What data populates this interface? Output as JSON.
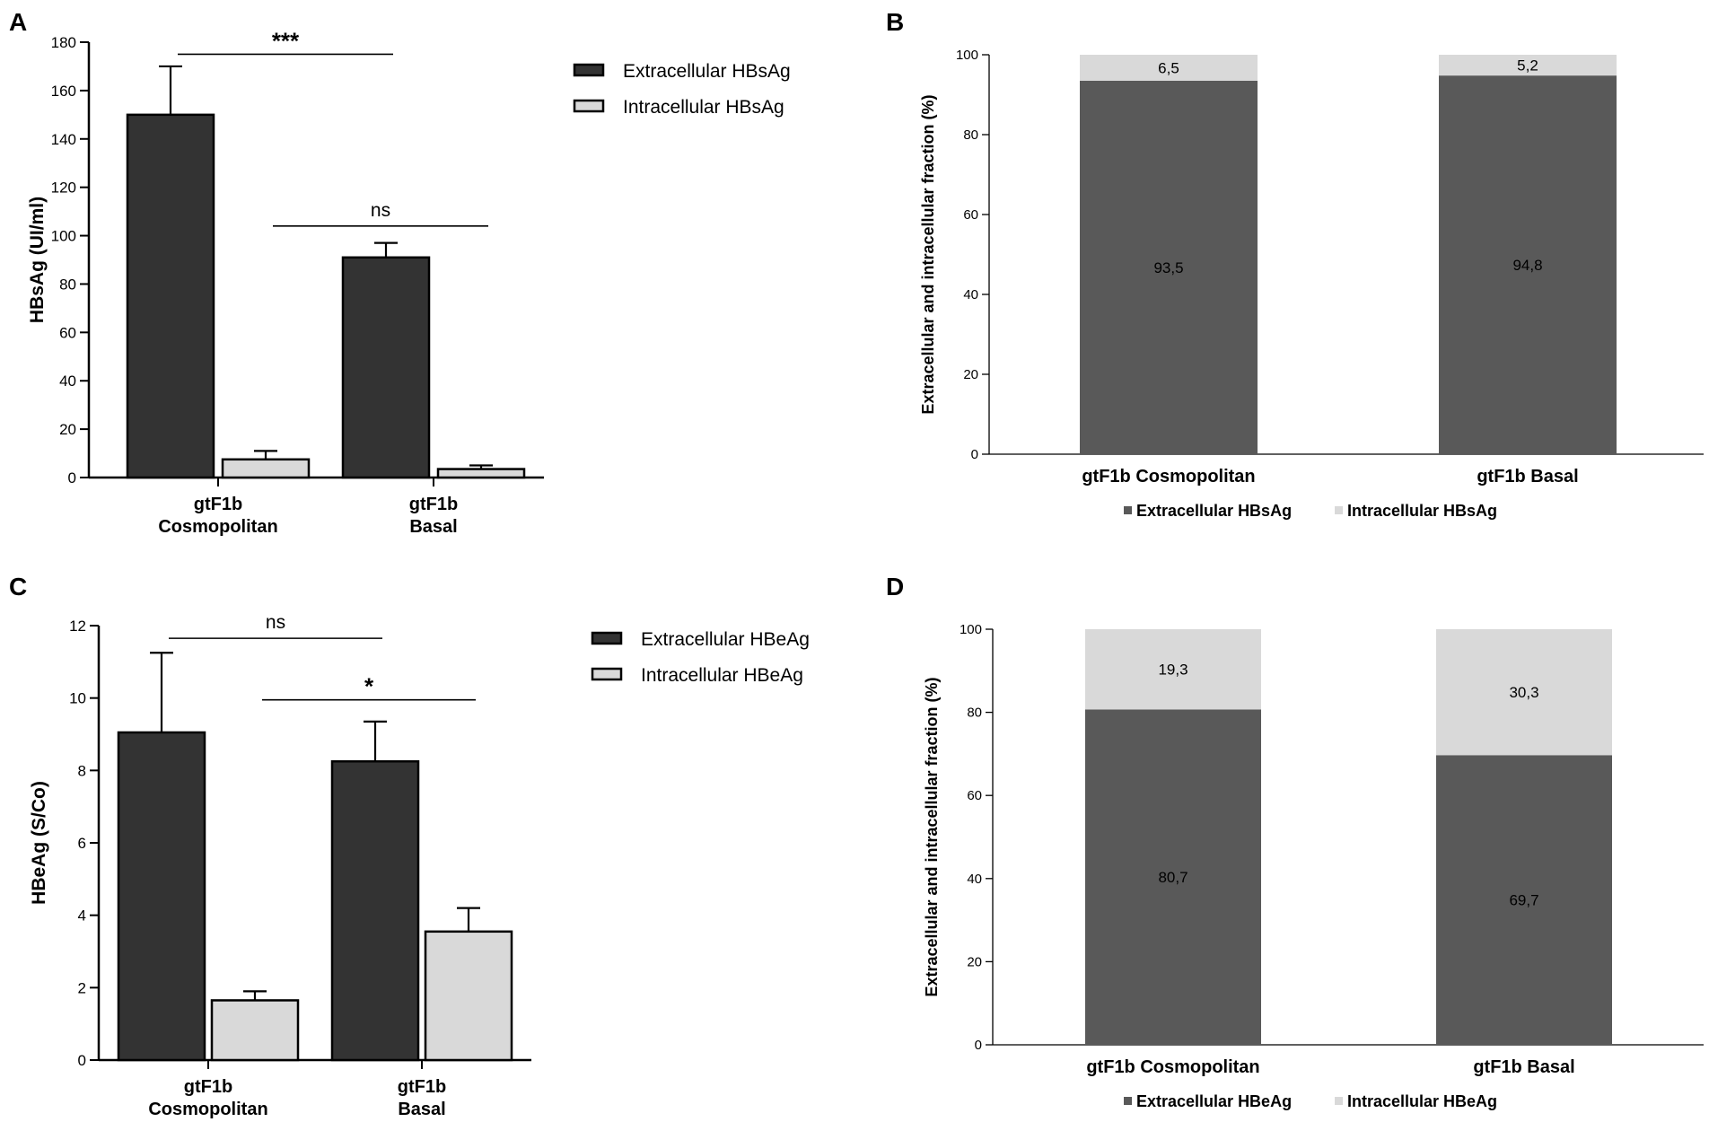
{
  "chart_data": [
    {
      "panel": "A",
      "type": "bar",
      "title": "",
      "xlabel": "",
      "ylabel": "HBsAg (UI/ml)",
      "ylim": [
        0,
        180
      ],
      "yticks": [
        0,
        20,
        40,
        60,
        80,
        100,
        120,
        140,
        160,
        180
      ],
      "categories": [
        [
          "gtF1b",
          "Cosmopolitan"
        ],
        [
          "gtF1b",
          "Basal"
        ]
      ],
      "series": [
        {
          "name": "Extracellular HBsAg",
          "color": "#333333",
          "values": [
            150,
            91
          ],
          "errors": [
            20,
            6
          ]
        },
        {
          "name": "Intracellular HBsAg",
          "color": "#d9d9d9",
          "values": [
            7.5,
            3.5
          ],
          "errors": [
            3.5,
            1.5
          ]
        }
      ],
      "significance": [
        {
          "label": "***",
          "bold": true,
          "y": 175,
          "from": [
            0,
            0
          ],
          "to": [
            1,
            0
          ]
        },
        {
          "label": "ns",
          "bold": false,
          "y": 104,
          "from": [
            0,
            1
          ],
          "to": [
            1,
            1
          ]
        }
      ],
      "legend": "right"
    },
    {
      "panel": "B",
      "type": "bar",
      "stacked": true,
      "title": "",
      "xlabel": "",
      "ylabel": "Extracellular and intracellular fraction (%)",
      "ylim": [
        0,
        100
      ],
      "yticks": [
        0,
        20,
        40,
        60,
        80,
        100
      ],
      "categories": [
        "gtF1b Cosmopolitan",
        "gtF1b Basal"
      ],
      "series": [
        {
          "name": "Extracellular HBsAg",
          "color": "#595959",
          "values": [
            93.5,
            94.8
          ],
          "labels": [
            "93,5",
            "94,8"
          ]
        },
        {
          "name": "Intracellular HBsAg",
          "color": "#d9d9d9",
          "values": [
            6.5,
            5.2
          ],
          "labels": [
            "6,5",
            "5,2"
          ]
        }
      ],
      "legend": "bottom"
    },
    {
      "panel": "C",
      "type": "bar",
      "title": "",
      "xlabel": "",
      "ylabel": "HBeAg (S/Co)",
      "ylim": [
        0,
        12
      ],
      "yticks": [
        0,
        2,
        4,
        6,
        8,
        10,
        12
      ],
      "categories": [
        [
          "gtF1b",
          "Cosmopolitan"
        ],
        [
          "gtF1b",
          "Basal"
        ]
      ],
      "series": [
        {
          "name": "Extracellular HBeAg",
          "color": "#333333",
          "values": [
            9.05,
            8.25
          ],
          "errors": [
            2.2,
            1.1
          ]
        },
        {
          "name": "Intracellular HBeAg",
          "color": "#d9d9d9",
          "values": [
            1.65,
            3.55
          ],
          "errors": [
            0.25,
            0.65
          ]
        }
      ],
      "significance": [
        {
          "label": "ns",
          "bold": false,
          "y": 11.65,
          "from": [
            0,
            0
          ],
          "to": [
            1,
            0
          ]
        },
        {
          "label": "*",
          "bold": true,
          "y": 9.95,
          "from": [
            0,
            1
          ],
          "to": [
            1,
            1
          ]
        }
      ],
      "legend": "right"
    },
    {
      "panel": "D",
      "type": "bar",
      "stacked": true,
      "title": "",
      "xlabel": "",
      "ylabel": "Extracellular and intracellular fraction (%)",
      "ylim": [
        0,
        100
      ],
      "yticks": [
        0,
        20,
        40,
        60,
        80,
        100
      ],
      "categories": [
        "gtF1b Cosmopolitan",
        "gtF1b Basal"
      ],
      "series": [
        {
          "name": "Extracellular HBeAg",
          "color": "#595959",
          "values": [
            80.7,
            69.7
          ],
          "labels": [
            "80,7",
            "69,7"
          ]
        },
        {
          "name": "Intracellular HBeAg",
          "color": "#d9d9d9",
          "values": [
            19.3,
            30.3
          ],
          "labels": [
            "19,3",
            "30,3"
          ]
        }
      ],
      "legend": "bottom"
    }
  ]
}
